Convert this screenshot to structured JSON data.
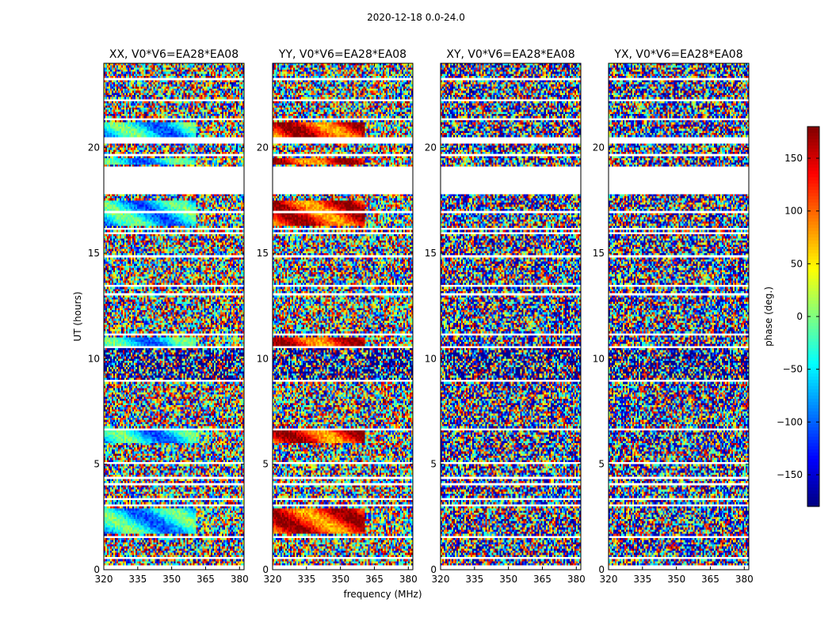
{
  "chart_data": {
    "type": "heatmap",
    "suptitle": "2020-12-18 0.0-24.0",
    "xlabel": "frequency (MHz)",
    "ylabel": "UT (hours)",
    "xlim": [
      320,
      382
    ],
    "ylim": [
      0,
      24
    ],
    "xticks": [
      320,
      335,
      350,
      365,
      380
    ],
    "yticks": [
      0,
      5,
      10,
      15,
      20
    ],
    "colorbar": {
      "label": "phase (deg.)",
      "cmap": "jet",
      "range": [
        -180,
        180
      ],
      "ticks": [
        -150,
        -100,
        -50,
        0,
        50,
        100,
        150
      ],
      "tick_labels": [
        "−150",
        "−100",
        "−50",
        "0",
        "50",
        "100",
        "150"
      ]
    },
    "panels": [
      {
        "title": "XX, V0*V6=EA28*EA08",
        "pol": "XX",
        "coherence": "high"
      },
      {
        "title": "YY, V0*V6=EA28*EA08",
        "pol": "YY",
        "coherence": "high"
      },
      {
        "title": "XY, V0*V6=EA28*EA08",
        "pol": "XY",
        "coherence": "low"
      },
      {
        "title": "YX, V0*V6=EA28*EA08",
        "pol": "YX",
        "coherence": "low"
      }
    ],
    "flagged_ut_ranges": [
      [
        0.0,
        0.15
      ],
      [
        0.5,
        0.62
      ],
      [
        1.05,
        1.12
      ],
      [
        1.28,
        1.35
      ],
      [
        1.55,
        1.62
      ],
      [
        3.0,
        3.1
      ],
      [
        3.3,
        3.4
      ],
      [
        3.95,
        4.1
      ],
      [
        4.35,
        4.42
      ],
      [
        5.05,
        5.12
      ],
      [
        6.6,
        6.7
      ],
      [
        7.45,
        7.55
      ],
      [
        8.55,
        8.62
      ],
      [
        8.95,
        9.02
      ],
      [
        10.55,
        10.62
      ],
      [
        11.15,
        11.22
      ],
      [
        12.55,
        12.62
      ],
      [
        13.0,
        13.08
      ],
      [
        13.45,
        13.52
      ],
      [
        14.85,
        14.92
      ],
      [
        15.9,
        15.98
      ],
      [
        16.15,
        16.22
      ],
      [
        16.95,
        17.02
      ],
      [
        17.8,
        19.1
      ],
      [
        19.65,
        19.72
      ],
      [
        20.2,
        20.5
      ],
      [
        21.35,
        21.42
      ],
      [
        22.25,
        22.32
      ],
      [
        23.25,
        23.32
      ]
    ],
    "coherent_ut_ranges": [
      [
        1.7,
        2.9
      ],
      [
        6.0,
        6.6
      ],
      [
        10.6,
        11.0
      ],
      [
        16.3,
        17.5
      ],
      [
        19.2,
        19.5
      ],
      [
        20.5,
        21.2
      ]
    ]
  }
}
